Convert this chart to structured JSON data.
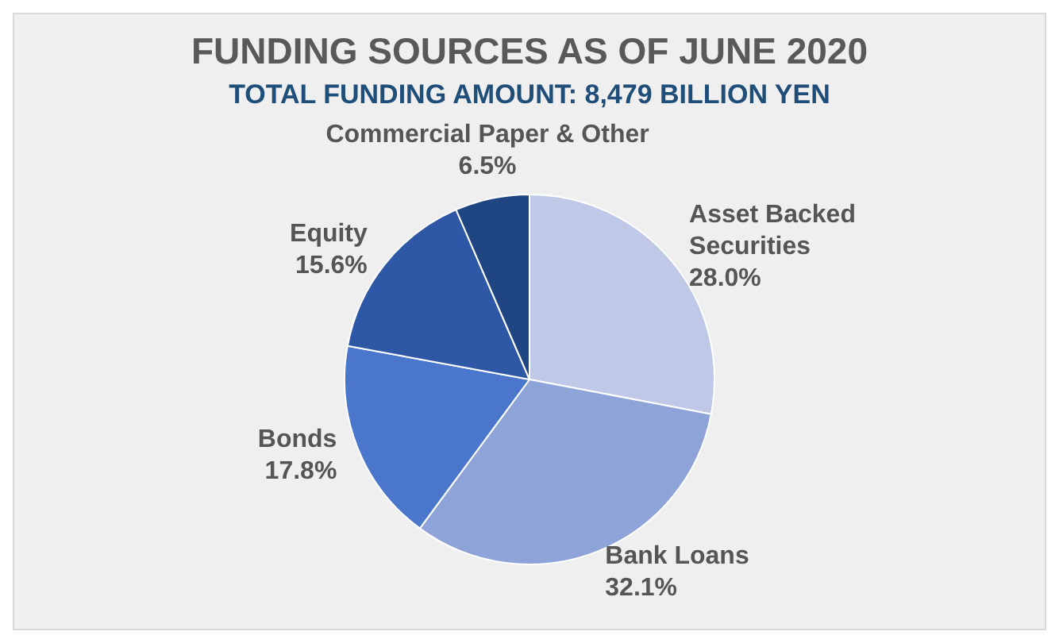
{
  "chart_data": {
    "type": "pie",
    "title": "FUNDING SOURCES AS OF JUNE 2020",
    "subtitle": "TOTAL FUNDING AMOUNT: 8,479 BILLION YEN",
    "categories": [
      "Asset Backed Securities",
      "Bank Loans",
      "Bonds",
      "Equity",
      "Commercial Paper & Other"
    ],
    "values": [
      28.0,
      32.1,
      17.8,
      15.6,
      6.5
    ],
    "value_labels": [
      "28.0%",
      "32.1%",
      "17.8%",
      "15.6%",
      "6.5%"
    ],
    "colors": [
      "#bfc8e6",
      "#8ea4d9",
      "#4a76cb",
      "#2e58a6",
      "#1f4583"
    ],
    "legend": false
  }
}
